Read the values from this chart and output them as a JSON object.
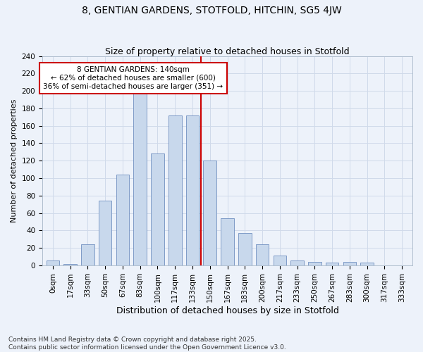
{
  "title": "8, GENTIAN GARDENS, STOTFOLD, HITCHIN, SG5 4JW",
  "subtitle": "Size of property relative to detached houses in Stotfold",
  "xlabel": "Distribution of detached houses by size in Stotfold",
  "ylabel": "Number of detached properties",
  "bar_labels": [
    "0sqm",
    "17sqm",
    "33sqm",
    "50sqm",
    "67sqm",
    "83sqm",
    "100sqm",
    "117sqm",
    "133sqm",
    "150sqm",
    "167sqm",
    "183sqm",
    "200sqm",
    "217sqm",
    "233sqm",
    "250sqm",
    "267sqm",
    "283sqm",
    "300sqm",
    "317sqm",
    "333sqm"
  ],
  "bar_values": [
    6,
    2,
    24,
    74,
    104,
    200,
    128,
    172,
    172,
    120,
    54,
    37,
    24,
    11,
    6,
    4,
    3,
    4,
    3,
    0,
    0
  ],
  "bar_color": "#c8d8ec",
  "bar_edge_color": "#7090c0",
  "grid_color": "#d0daea",
  "background_color": "#edf2fa",
  "red_line_color": "#cc0000",
  "annotation_text": "8 GENTIAN GARDENS: 140sqm\n← 62% of detached houses are smaller (600)\n36% of semi-detached houses are larger (351) →",
  "annotation_box_color": "#ffffff",
  "annotation_box_edge": "#cc0000",
  "footer_text": "Contains HM Land Registry data © Crown copyright and database right 2025.\nContains public sector information licensed under the Open Government Licence v3.0.",
  "ylim": [
    0,
    240
  ],
  "yticks": [
    0,
    20,
    40,
    60,
    80,
    100,
    120,
    140,
    160,
    180,
    200,
    220,
    240
  ],
  "title_fontsize": 10,
  "subtitle_fontsize": 9,
  "ylabel_fontsize": 8,
  "xlabel_fontsize": 9,
  "tick_fontsize": 7.5,
  "annotation_fontsize": 7.5,
  "footer_fontsize": 6.5,
  "red_line_index": 8.5
}
